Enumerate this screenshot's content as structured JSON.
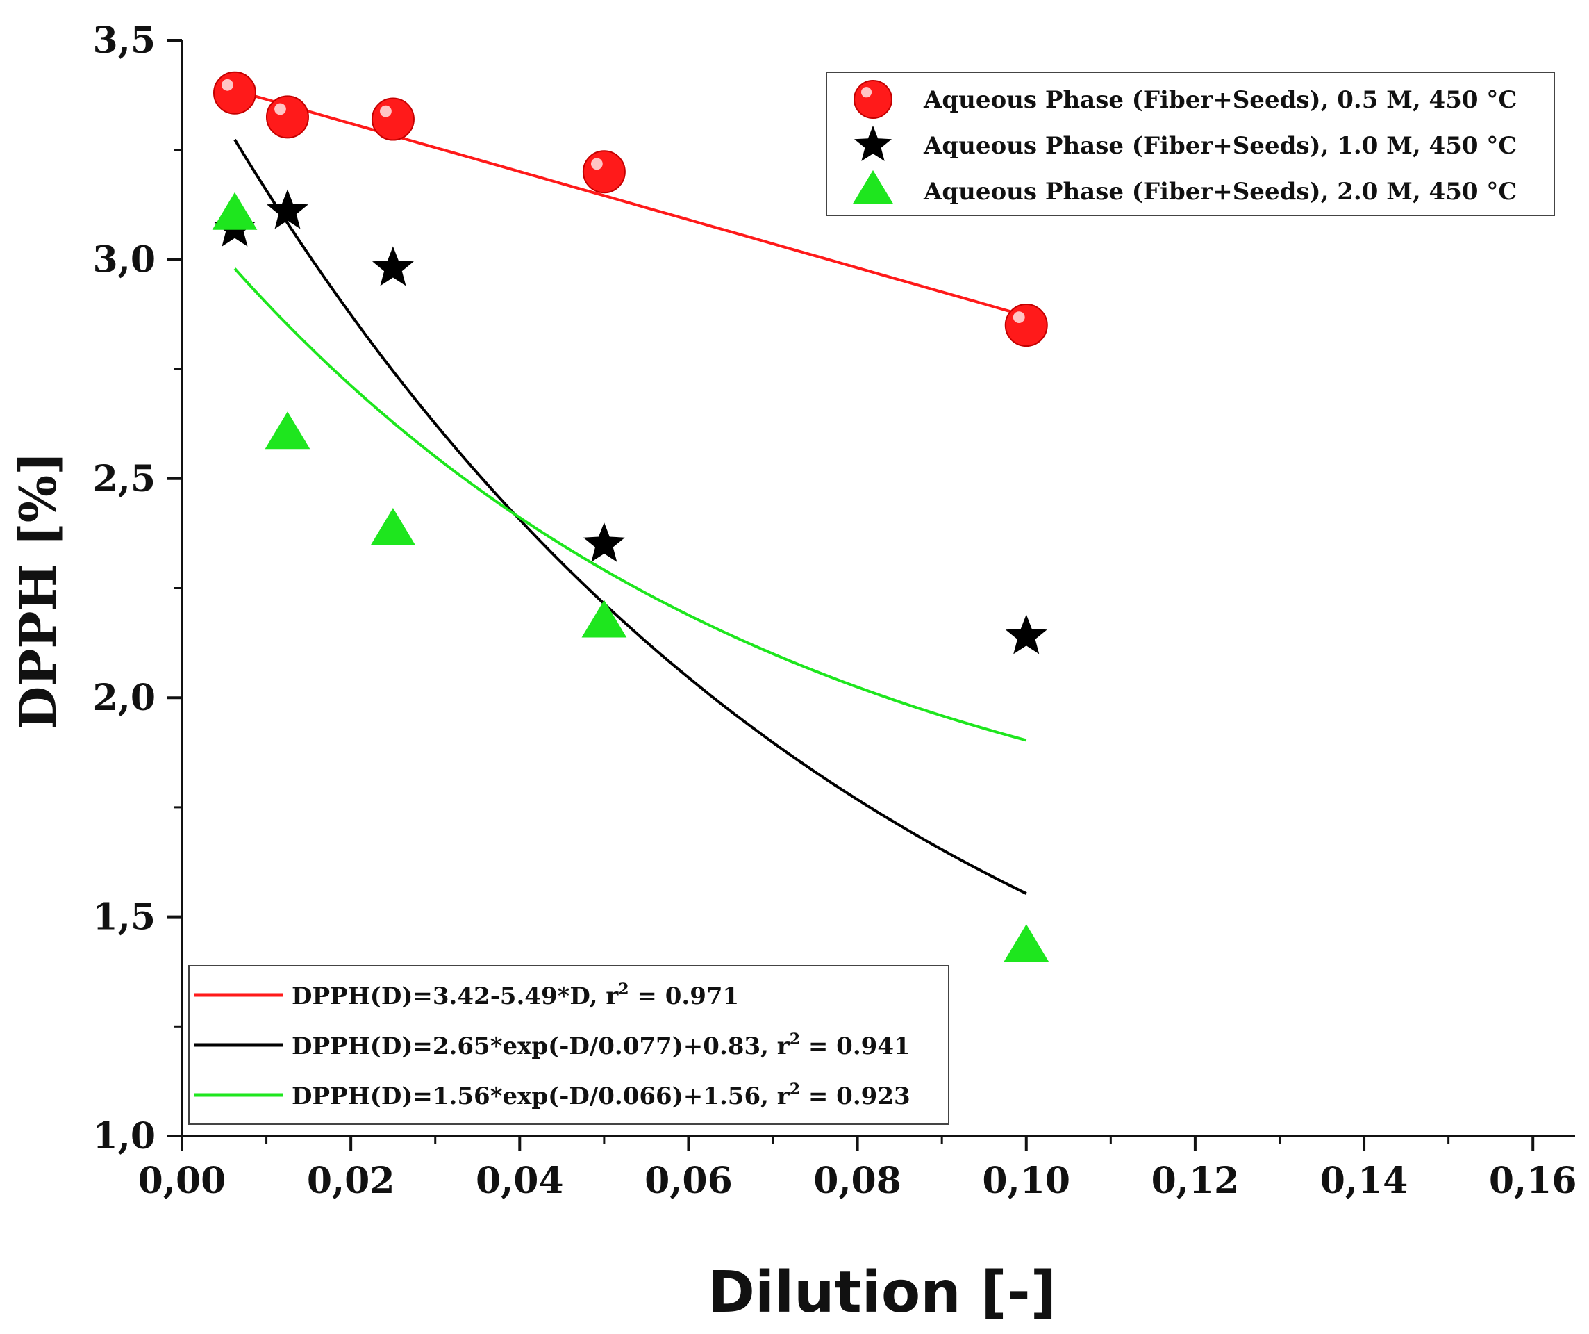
{
  "chart_data": {
    "type": "scatter",
    "title": "",
    "xlabel": "Dilution [-]",
    "ylabel": "DPPH [%]",
    "xlim": [
      0.0,
      0.165
    ],
    "ylim": [
      1.0,
      3.5
    ],
    "x_ticks": [
      0.0,
      0.02,
      0.04,
      0.06,
      0.08,
      0.1,
      0.12,
      0.14,
      0.16
    ],
    "x_tick_labels": [
      "0,00",
      "0,02",
      "0,04",
      "0,06",
      "0,08",
      "0,10",
      "0,12",
      "0,14",
      "0,16"
    ],
    "y_ticks": [
      1.0,
      1.5,
      2.0,
      2.5,
      3.0,
      3.5
    ],
    "y_tick_labels": [
      "1,0",
      "1,5",
      "2,0",
      "2,5",
      "3,0",
      "3,5"
    ],
    "series": [
      {
        "name": "Aqueous Phase (Fiber+Seeds), 0.5 M, 450 °C",
        "marker": "circle",
        "color": "#ff1a1a",
        "x": [
          0.00625,
          0.0125,
          0.025,
          0.05,
          0.1
        ],
        "y": [
          3.38,
          3.325,
          3.32,
          3.2,
          2.85
        ]
      },
      {
        "name": "Aqueous Phase (Fiber+Seeds), 1.0 M, 450 °C",
        "marker": "star",
        "color": "#000000",
        "x": [
          0.00625,
          0.0125,
          0.025,
          0.05,
          0.1
        ],
        "y": [
          3.07,
          3.11,
          2.98,
          2.35,
          2.14
        ]
      },
      {
        "name": "Aqueous Phase (Fiber+Seeds), 2.0 M, 450 °C",
        "marker": "triangle",
        "color": "#1ee61e",
        "x": [
          0.00625,
          0.0125,
          0.025,
          0.05,
          0.1
        ],
        "y": [
          3.1,
          2.6,
          2.38,
          2.17,
          1.43
        ]
      }
    ],
    "fits": [
      {
        "label": "DPPH(D)=3.42-5.49*D, r",
        "sup": "2",
        "label_tail": " = 0.971",
        "color": "#ff1a1a",
        "model": "linear",
        "a": 3.42,
        "b": -5.49,
        "x_range": [
          0.00625,
          0.1
        ]
      },
      {
        "label": "DPPH(D)=2.65*exp(-D/0.077)+0.83, r",
        "sup": "2",
        "label_tail": " = 0.941",
        "color": "#000000",
        "model": "exp",
        "A": 2.65,
        "t": 0.077,
        "c": 0.83,
        "x_range": [
          0.00625,
          0.1
        ]
      },
      {
        "label": "DPPH(D)=1.56*exp(-D/0.066)+1.56, r",
        "sup": "2",
        "label_tail": " = 0.923",
        "color": "#1ee61e",
        "model": "exp",
        "A": 1.56,
        "t": 0.066,
        "c": 1.56,
        "x_range": [
          0.00625,
          0.1
        ]
      }
    ],
    "legend_markers_position": "top-right",
    "legend_fits_position": "bottom-left"
  }
}
